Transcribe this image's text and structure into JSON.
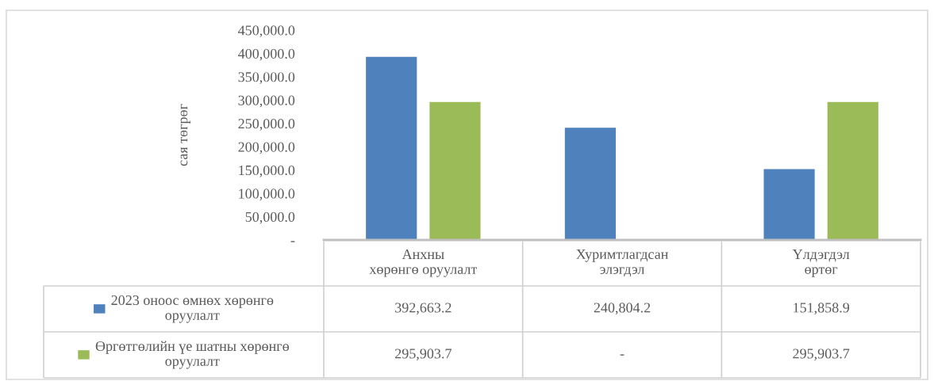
{
  "chart_data": {
    "type": "bar",
    "ylabel": "сая төгрөг",
    "categories": [
      "Анхны\nхөрөнгө оруулалт",
      "Хуримтлагдсан\nэлэгдэл",
      "Үлдэгдэл\nөртөг"
    ],
    "series": [
      {
        "name": "2023 оноос өмнөх хөрөнгө\nоруулалт",
        "color": "#4f81bd",
        "values": [
          392663.2,
          240804.2,
          151858.9
        ],
        "value_labels": [
          "392,663.2",
          "240,804.2",
          "151,858.9"
        ]
      },
      {
        "name": "Өргөтгөлийн үе шатны хөрөнгө\nоруулалт",
        "color": "#9bbb59",
        "values": [
          295903.7,
          null,
          295903.7
        ],
        "value_labels": [
          "295,903.7",
          "-",
          "295,903.7"
        ]
      }
    ],
    "ylim": [
      0,
      450000
    ],
    "yticks": [
      {
        "value": 0,
        "label": "-"
      },
      {
        "value": 50000,
        "label": "50,000.0"
      },
      {
        "value": 100000,
        "label": "100,000.0"
      },
      {
        "value": 150000,
        "label": "150,000.0"
      },
      {
        "value": 200000,
        "label": "200,000.0"
      },
      {
        "value": 250000,
        "label": "250,000.0"
      },
      {
        "value": 300000,
        "label": "300,000.0"
      },
      {
        "value": 350000,
        "label": "350,000.0"
      },
      {
        "value": 400000,
        "label": "400,000.0"
      },
      {
        "value": 450000,
        "label": "450,000.0"
      }
    ],
    "legend": "bottom"
  }
}
